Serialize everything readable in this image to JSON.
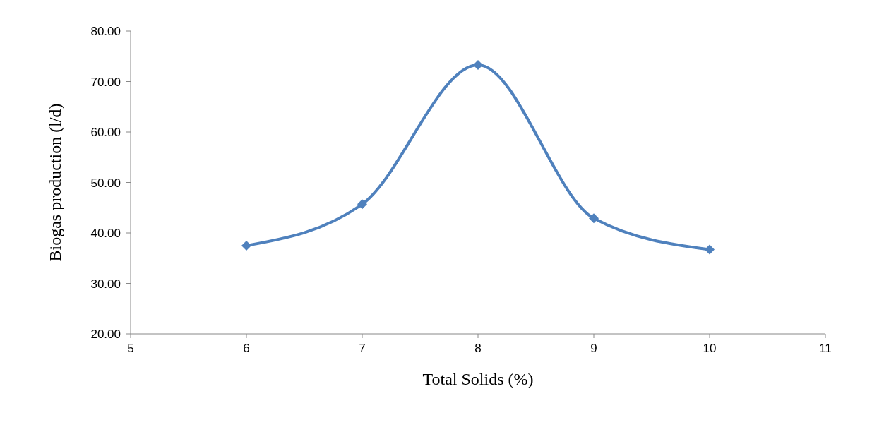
{
  "chart_data": {
    "type": "line",
    "xlabel": "Total Solids (%)",
    "ylabel": "Biogas production (l/d)",
    "x": [
      6,
      7,
      8,
      9,
      10
    ],
    "series": [
      {
        "color": "#4f81bd",
        "values": [
          37.5,
          45.7,
          73.3,
          42.9,
          36.7
        ]
      }
    ],
    "xlim": [
      5,
      11
    ],
    "xticks": [
      5,
      6,
      7,
      8,
      9,
      10,
      11
    ],
    "ylim": [
      20,
      80
    ],
    "yticks": [
      {
        "value": 20,
        "label": "20.00"
      },
      {
        "value": 30,
        "label": "30.00"
      },
      {
        "value": 40,
        "label": "40.00"
      },
      {
        "value": 50,
        "label": "50.00"
      },
      {
        "value": 60,
        "label": "60.00"
      },
      {
        "value": 70,
        "label": "70.00"
      },
      {
        "value": 80,
        "label": "80.00"
      }
    ],
    "grid": false,
    "legend": false,
    "marker": "diamond",
    "line_style": "solid"
  }
}
